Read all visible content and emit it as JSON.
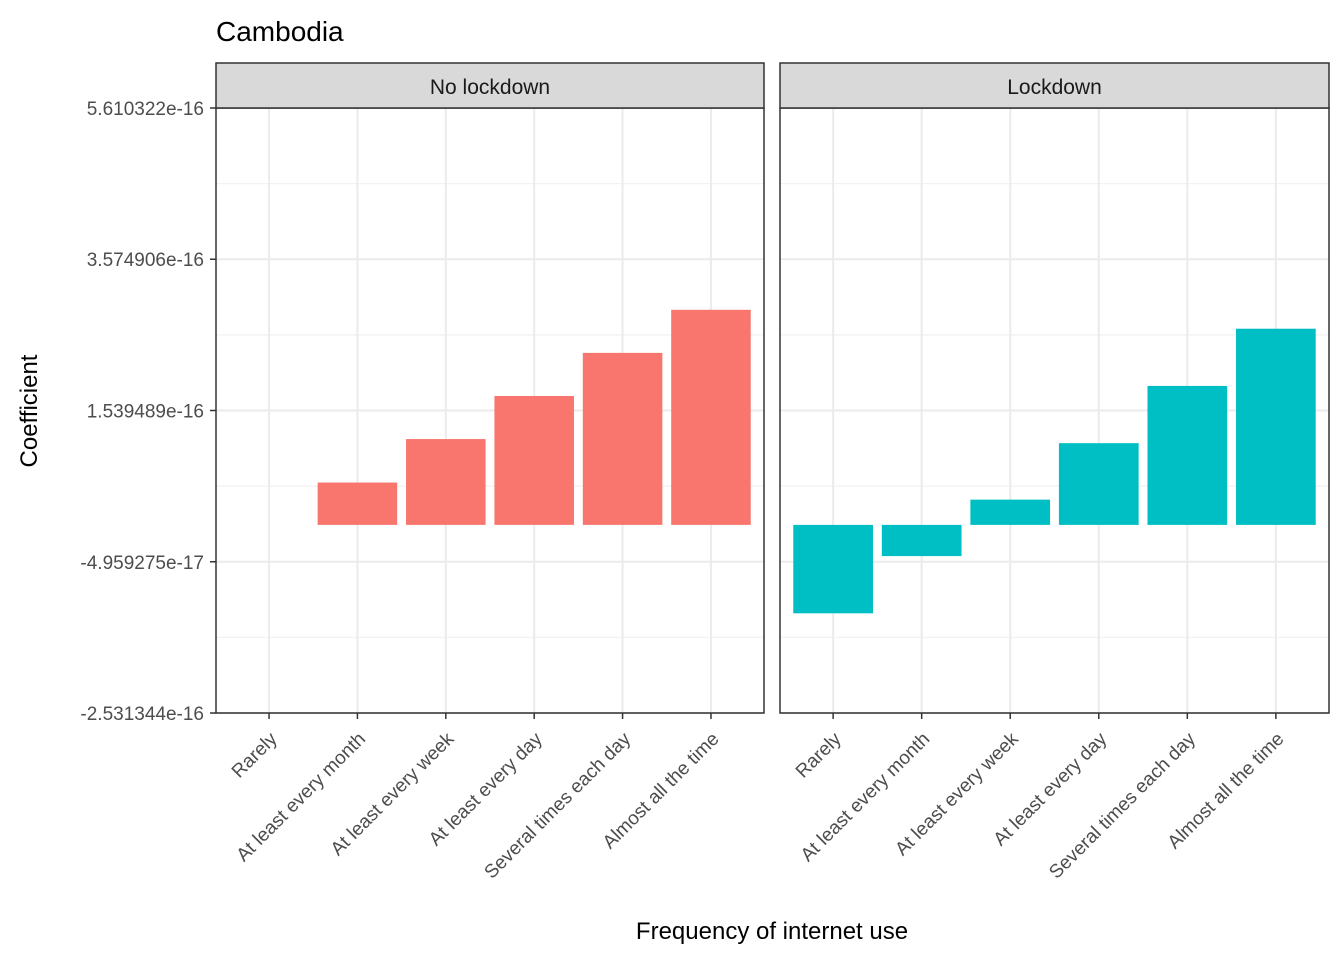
{
  "chart_data": {
    "type": "bar",
    "title": "Cambodia",
    "xlabel": "Frequency of internet use",
    "ylabel": "Coefficient",
    "categories": [
      "Rarely",
      "At least every month",
      "At least every week",
      "At least every day",
      "Several times each day",
      "Almost all the time"
    ],
    "y_ticks": [
      -2.531344e-16,
      -4.959275e-17,
      1.539489e-16,
      3.574906e-16,
      5.610322e-16
    ],
    "y_tick_labels": [
      "-2.531344e-16",
      "-4.959275e-17",
      "1.539489e-16",
      "3.574906e-16",
      "5.610322e-16"
    ],
    "ylim": [
      -2.531344e-16,
      5.610322e-16
    ],
    "grid": true,
    "legend": "none",
    "panels": [
      {
        "name": "No lockdown",
        "color": "#F8766D",
        "values": [
          0,
          5.7e-17,
          1.155e-16,
          1.735e-16,
          2.315e-16,
          2.895e-16
        ]
      },
      {
        "name": "Lockdown",
        "color": "#00BFC4",
        "values": [
          -1.19e-16,
          -4.2e-17,
          3.4e-17,
          1.1e-16,
          1.87e-16,
          2.64e-16
        ]
      }
    ]
  }
}
